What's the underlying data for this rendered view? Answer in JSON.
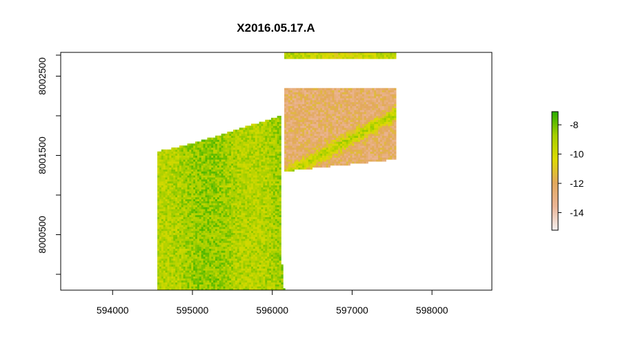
{
  "chart_data": {
    "type": "heatmap",
    "title": "X2016.05.17.A",
    "xlabel": "",
    "ylabel": "",
    "xlim": [
      593350,
      598750
    ],
    "ylim": [
      7999800,
      8002800
    ],
    "xticks": [
      594000,
      595000,
      596000,
      597000,
      598000
    ],
    "xtick_labels": [
      "594000",
      "595000",
      "596000",
      "597000",
      "598000"
    ],
    "yticks": [
      8000500,
      8001500,
      8002500
    ],
    "ytick_labels": [
      "8000500",
      "8001500",
      "8002500"
    ],
    "y_minor_ticks": [
      8000000,
      8001000,
      8002000
    ],
    "grid": false,
    "legend": {
      "type": "colorbar",
      "placement": "right",
      "range": [
        -15.2,
        -7.1
      ],
      "ticks": [
        -8,
        -10,
        -12,
        -14
      ],
      "tick_labels": [
        "-8",
        "-10",
        "-12",
        "-14"
      ],
      "colors": [
        "#F5F0F0",
        "#EBB596",
        "#E2A85C",
        "#DDDB00",
        "#A6CF00",
        "#2AAD00"
      ]
    },
    "regions": [
      {
        "description_values": "southwest block",
        "polygon": [
          [
            594560,
            7999800
          ],
          [
            594560,
            8001550
          ],
          [
            595000,
            8001650
          ],
          [
            596100,
            8002000
          ],
          [
            596100,
            8000400
          ],
          [
            596150,
            7999800
          ]
        ],
        "mean_value": -8.9,
        "range": [
          -10.0,
          -7.6
        ]
      },
      {
        "description_values": "central-east block",
        "polygon": [
          [
            596150,
            8002350
          ],
          [
            597550,
            8002350
          ],
          [
            597550,
            8001450
          ],
          [
            596150,
            8001300
          ]
        ],
        "mean_value": -12.4,
        "range": [
          -15.0,
          -8.5
        ]
      },
      {
        "description_values": "north strip",
        "polygon": [
          [
            596150,
            8002800
          ],
          [
            597550,
            8002800
          ],
          [
            597550,
            8002720
          ],
          [
            596150,
            8002720
          ]
        ],
        "mean_value": -9.8,
        "range": [
          -11.0,
          -8.5
        ]
      }
    ]
  }
}
